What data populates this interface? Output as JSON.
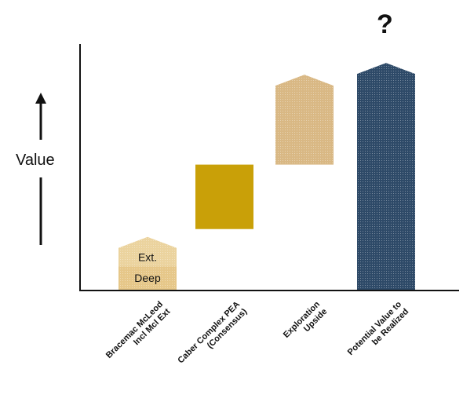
{
  "chart_data": {
    "type": "bar",
    "title": "",
    "xlabel": "",
    "ylabel": "Value",
    "annotation": "?",
    "grid": false,
    "ylim": [
      0,
      100
    ],
    "categories": [
      [
        "Bracemac McLeod",
        "Incl Mcl Ext"
      ],
      [
        "Caber Complex PEA",
        "(Consensus)"
      ],
      [
        "Exploration",
        "Upside"
      ],
      [
        "Potential Value to",
        "be Realized"
      ]
    ],
    "bars": [
      {
        "category_index": 0,
        "segments": [
          {
            "label": "Deep",
            "from": 0,
            "to": 12,
            "color": "#E6C789",
            "textured": true
          },
          {
            "label": "Ext.",
            "from": 12,
            "to": 27,
            "color": "#EBD39E",
            "textured": true,
            "arrow_top": true
          }
        ]
      },
      {
        "category_index": 1,
        "segments": [
          {
            "label": "",
            "from": 31,
            "to": 64,
            "color": "#C9A008",
            "textured": false
          }
        ]
      },
      {
        "category_index": 2,
        "segments": [
          {
            "label": "",
            "from": 64,
            "to": 110,
            "color": "#D9B884",
            "textured": true,
            "arrow_top": true
          }
        ]
      },
      {
        "category_index": 3,
        "segments": [
          {
            "label": "",
            "from": 0,
            "to": 116,
            "color": "#2E4A68",
            "textured": true,
            "arrow_top": true
          }
        ]
      }
    ]
  }
}
